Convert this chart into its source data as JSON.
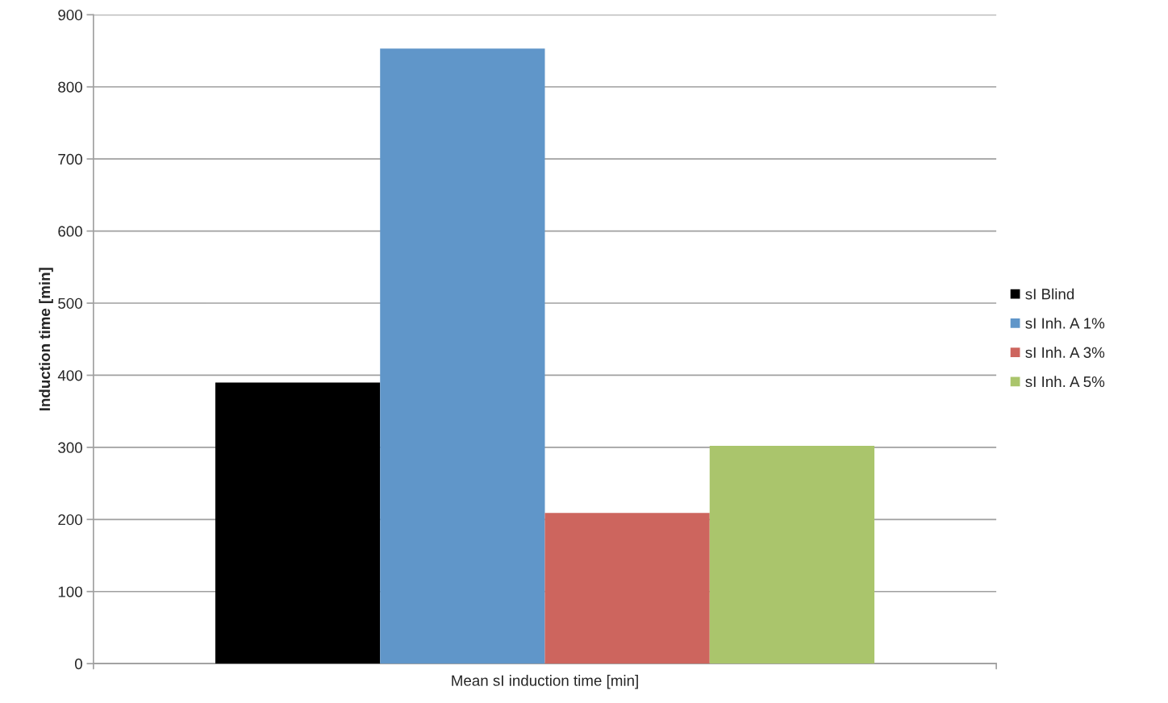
{
  "chart_data": {
    "type": "bar",
    "ylabel": "Induction time [min]",
    "categories": [
      "Mean sI induction time [min]"
    ],
    "series": [
      {
        "name": "sI Blind",
        "color": "#000000",
        "values": [
          390
        ]
      },
      {
        "name": "sI Inh. A 1%",
        "color": "#6096c9",
        "values": [
          853
        ]
      },
      {
        "name": "sI Inh. A 3%",
        "color": "#cd655e",
        "values": [
          209
        ]
      },
      {
        "name": "sI Inh. A 5%",
        "color": "#aac56c",
        "values": [
          302
        ]
      }
    ],
    "ylim": [
      0,
      900
    ],
    "yticks": [
      0,
      100,
      200,
      300,
      400,
      500,
      600,
      700,
      800,
      900
    ],
    "grid": "y",
    "legend": "right"
  }
}
